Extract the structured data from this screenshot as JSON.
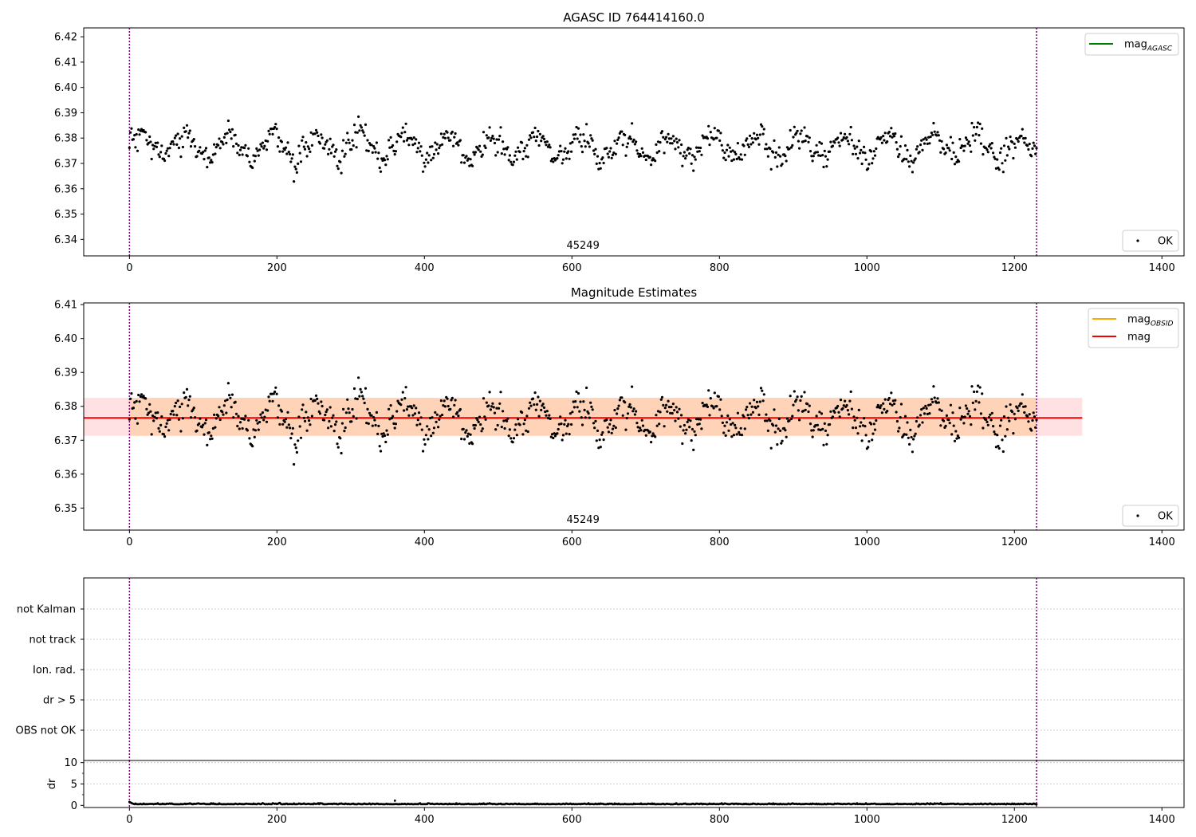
{
  "chart_data": [
    {
      "type": "scatter",
      "title": "AGASC ID 764414160.0",
      "xlim": [
        -62,
        1430
      ],
      "ylim": [
        6.3335,
        6.4235
      ],
      "x_ticks": [
        0,
        200,
        400,
        600,
        800,
        1000,
        1200,
        1400
      ],
      "y_ticks": [
        6.34,
        6.35,
        6.36,
        6.37,
        6.38,
        6.39,
        6.4,
        6.41,
        6.42
      ],
      "vlines": [
        0,
        1230
      ],
      "annotation": {
        "text": "45249",
        "x": 615
      },
      "series": [
        {
          "name": "OK",
          "kind": "points",
          "color": "#000000",
          "x_range": [
            0,
            1230
          ],
          "count": 900,
          "mean": 6.3766,
          "spread": 0.0055
        },
        {
          "name": "mag",
          "sub": "AGASC",
          "kind": "line",
          "color": "#008000"
        }
      ],
      "legend": {
        "lines_placement": "upper-right",
        "points_placement": "lower-right"
      }
    },
    {
      "type": "scatter",
      "title": "Magnitude Estimates",
      "xlim": [
        -62,
        1430
      ],
      "ylim": [
        6.3435,
        6.4105
      ],
      "x_ticks": [
        0,
        200,
        400,
        600,
        800,
        1000,
        1200,
        1400
      ],
      "y_ticks": [
        6.35,
        6.36,
        6.37,
        6.38,
        6.39,
        6.4,
        6.41
      ],
      "vlines": [
        0,
        1230
      ],
      "annotation": {
        "text": "45249",
        "x": 615
      },
      "mean_mag": 6.3766,
      "band_inner": {
        "x": [
          0,
          1230
        ],
        "y": [
          6.3713,
          6.3825
        ],
        "color": "#ffd3b8"
      },
      "band_outer": {
        "x": [
          -62,
          1292
        ],
        "y": [
          6.3713,
          6.3825
        ],
        "color": "#ffe0e3"
      },
      "series": [
        {
          "name": "OK",
          "kind": "points",
          "color": "#000000"
        },
        {
          "name": "mag",
          "sub": "OBSID",
          "kind": "line",
          "color": "#ffa500"
        },
        {
          "name": "mag",
          "kind": "line",
          "color": "#ff0000"
        }
      ],
      "legend": {
        "lines_placement": "upper-right",
        "points_placement": "lower-right"
      }
    },
    {
      "type": "table",
      "categories": [
        "not Kalman",
        "not track",
        "Ion. rad.",
        "dr > 5",
        "OBS not OK"
      ],
      "xlim": [
        -62,
        1430
      ],
      "vlines": [
        0,
        1230
      ]
    },
    {
      "type": "line",
      "ylabel": "dr",
      "xlim": [
        -62,
        1430
      ],
      "ylim": [
        -0.5,
        10.5
      ],
      "x_ticks": [
        0,
        200,
        400,
        600,
        800,
        1000,
        1200,
        1400
      ],
      "y_ticks": [
        0,
        5,
        10
      ],
      "vlines": [
        0,
        1230
      ],
      "series": [
        {
          "kind": "points",
          "color": "#000000",
          "x_range": [
            0,
            1230
          ],
          "typical": 0.25
        }
      ]
    }
  ]
}
